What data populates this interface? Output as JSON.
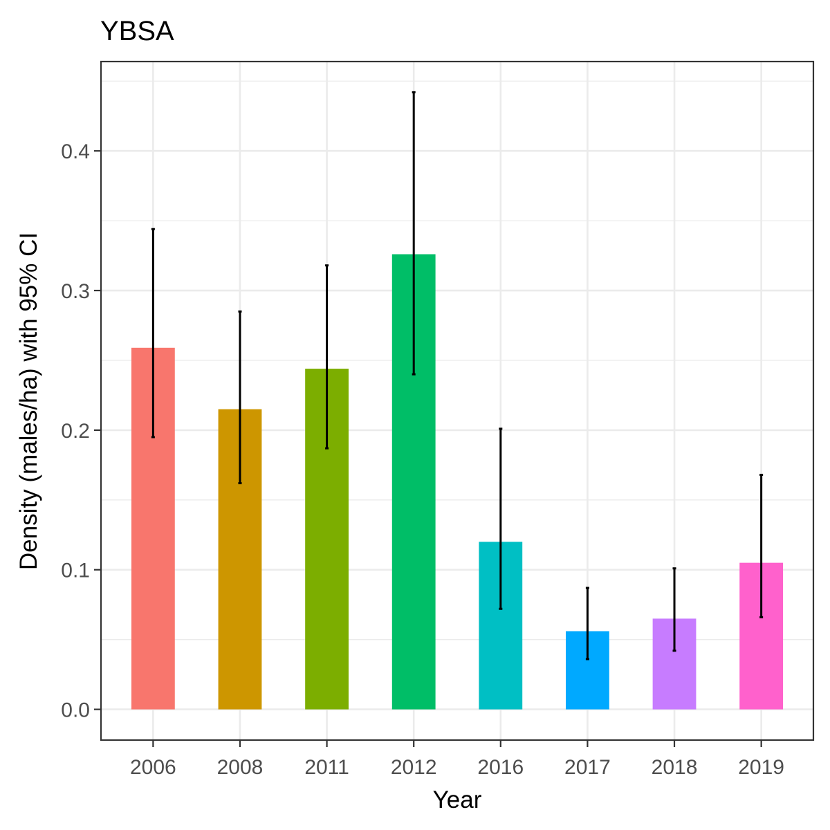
{
  "chart_data": {
    "type": "bar",
    "title": "YBSA",
    "xlabel": "Year",
    "ylabel": "Density (males/ha) with 95% CI",
    "categories": [
      "2006",
      "2008",
      "2011",
      "2012",
      "2016",
      "2017",
      "2018",
      "2019"
    ],
    "values": [
      0.259,
      0.215,
      0.244,
      0.326,
      0.12,
      0.056,
      0.065,
      0.105
    ],
    "ci_lower": [
      0.195,
      0.162,
      0.187,
      0.24,
      0.072,
      0.036,
      0.042,
      0.066
    ],
    "ci_upper": [
      0.344,
      0.285,
      0.318,
      0.442,
      0.201,
      0.087,
      0.101,
      0.168
    ],
    "colors": [
      "#F8766D",
      "#CD9600",
      "#7CAE00",
      "#00BE67",
      "#00BFC4",
      "#00A9FF",
      "#C77CFF",
      "#FF61CC"
    ],
    "ylim": [
      -0.022,
      0.464
    ],
    "yticks": [
      0.0,
      0.1,
      0.2,
      0.3,
      0.4
    ],
    "ytick_labels": [
      "0.0",
      "0.1",
      "0.2",
      "0.3",
      "0.4"
    ],
    "grid": true,
    "legend": "none"
  }
}
